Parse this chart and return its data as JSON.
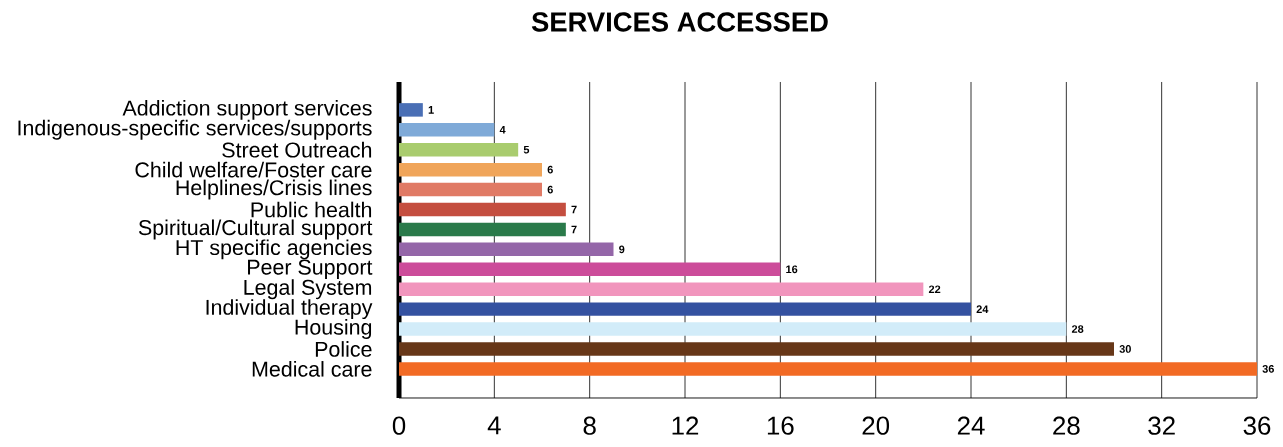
{
  "chart_data": {
    "type": "bar",
    "orientation": "horizontal",
    "title": "SERVICES ACCESSED",
    "categories": [
      "Addiction support services",
      "Indigenous-specific services/supports",
      "Street Outreach",
      "Child welfare/Foster care",
      "Helplines/Crisis lines",
      "Public health",
      "Spiritual/Cultural support",
      "HT specific agencies",
      "Peer Support",
      "Legal System",
      "Individual therapy",
      "Housing",
      "Police",
      "Medical care"
    ],
    "values": [
      1,
      4,
      5,
      6,
      6,
      7,
      7,
      9,
      16,
      22,
      24,
      28,
      30,
      36
    ],
    "colors": [
      "#4a6fb5",
      "#7faad8",
      "#a9cc6e",
      "#f0a55a",
      "#e07a65",
      "#c44e3f",
      "#2a7a4a",
      "#9466a8",
      "#cc4c9a",
      "#f195bd",
      "#3451a0",
      "#d2ecf9",
      "#673718",
      "#f26a24"
    ],
    "xlim": [
      0,
      36
    ],
    "xticks": [
      0,
      4,
      8,
      12,
      16,
      20,
      24,
      28,
      32,
      36
    ],
    "grid": "x",
    "data_labels": true
  }
}
